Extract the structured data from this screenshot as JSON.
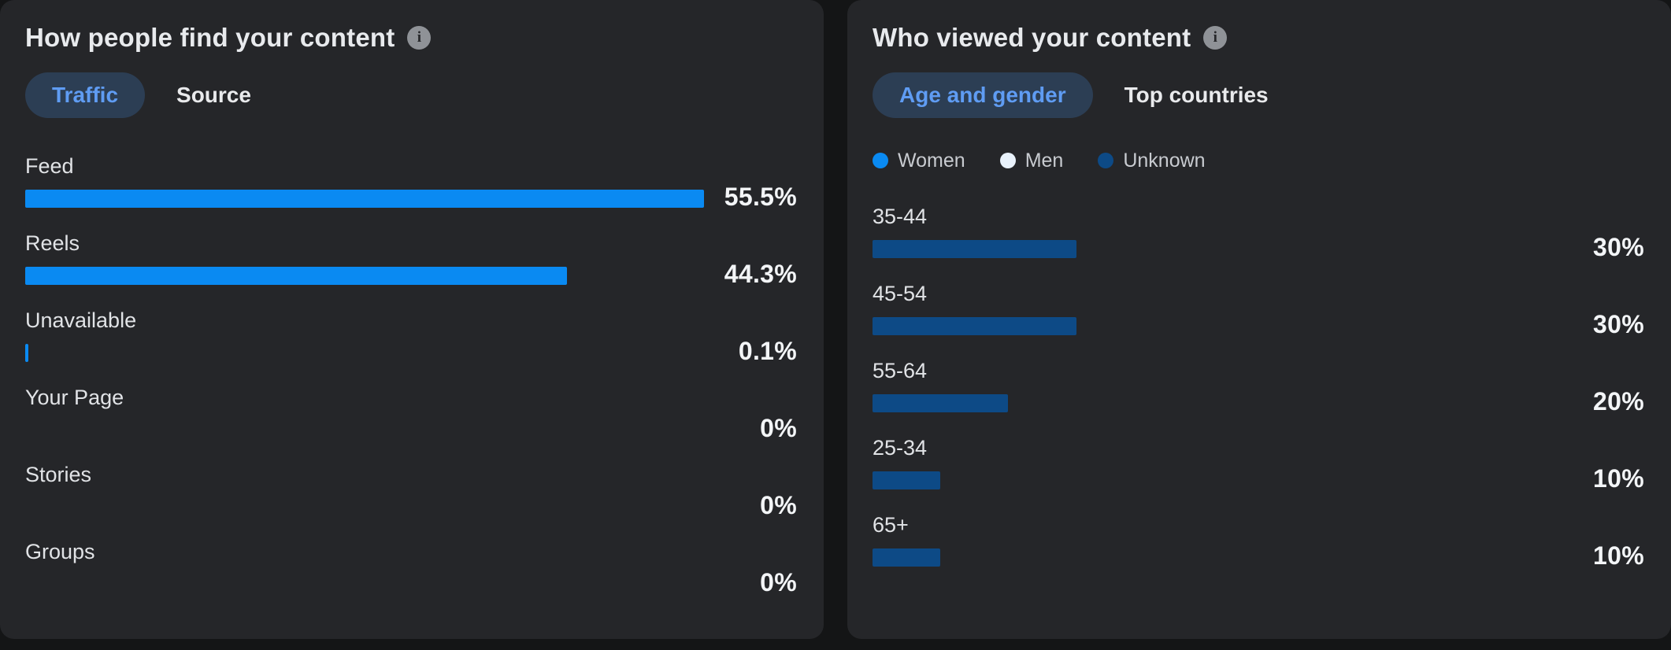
{
  "page": {
    "background": "#141516",
    "card_background": "#252629"
  },
  "colors": {
    "bright_blue": "#0a8af2",
    "navy_blue": "#0d4a86",
    "selected_tab_text": "#5f9cf3",
    "selected_tab_bg": "#2c3e54",
    "men_dot": "#e9f2fb"
  },
  "find_card": {
    "title": "How people find your content",
    "info_icon": "info-icon",
    "tabs": [
      {
        "label": "Traffic",
        "selected": true
      },
      {
        "label": "Source",
        "selected": false
      }
    ]
  },
  "viewed_card": {
    "title": "Who viewed your content",
    "info_icon": "info-icon",
    "tabs": [
      {
        "label": "Age and gender",
        "selected": true
      },
      {
        "label": "Top countries",
        "selected": false
      }
    ],
    "legend": [
      {
        "label": "Women",
        "color": "#0a8af2"
      },
      {
        "label": "Men",
        "color": "#e9f2fb"
      },
      {
        "label": "Unknown",
        "color": "#0d4a86"
      }
    ]
  },
  "chart_data": [
    {
      "type": "bar",
      "orientation": "horizontal",
      "title": "How people find your content",
      "active_tab": "Traffic",
      "categories": [
        "Feed",
        "Reels",
        "Unavailable",
        "Your Page",
        "Stories",
        "Groups"
      ],
      "values": [
        55.5,
        44.3,
        0.1,
        0,
        0,
        0
      ],
      "value_labels": [
        "55.5%",
        "44.3%",
        "0.1%",
        "0%",
        "0%",
        "0%"
      ],
      "bar_color": "#0a8af2",
      "axis_max": 55.5,
      "grid": false,
      "legend_position": "none"
    },
    {
      "type": "bar",
      "orientation": "horizontal",
      "title": "Who viewed your content",
      "active_tab": "Age and gender",
      "categories": [
        "35-44",
        "45-54",
        "55-64",
        "25-34",
        "65+"
      ],
      "values": [
        30,
        30,
        20,
        10,
        10
      ],
      "value_labels": [
        "30%",
        "30%",
        "20%",
        "10%",
        "10%"
      ],
      "series_of_each_bar": [
        "Unknown",
        "Unknown",
        "Unknown",
        "Unknown",
        "Unknown"
      ],
      "bar_color": "#0d4a86",
      "axis_max": 100,
      "grid": false,
      "legend": [
        "Women",
        "Men",
        "Unknown"
      ],
      "legend_position": "top"
    }
  ]
}
